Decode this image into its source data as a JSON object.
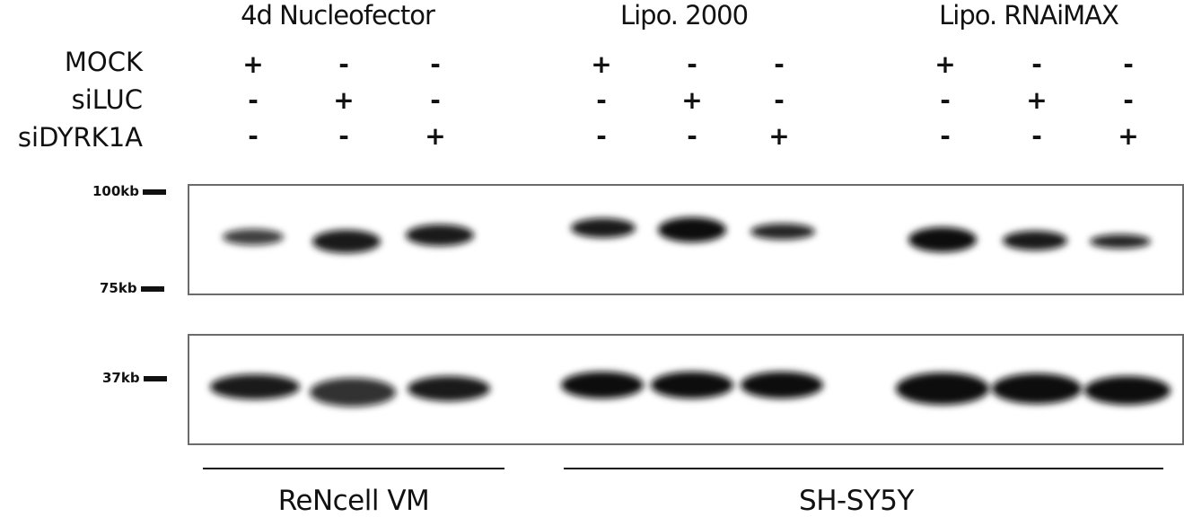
{
  "group_titles": [
    "4d Nucleofector",
    "Lipo. 2000",
    "Lipo. RNAiMAX"
  ],
  "row_labels": [
    "MOCK",
    "siLUC",
    "siDYRK1A"
  ],
  "conditions": [
    [
      "+",
      "-",
      "-"
    ],
    [
      "-",
      "+",
      "-"
    ],
    [
      "-",
      "-",
      "+"
    ]
  ],
  "markers": {
    "top_panel": [
      "100kb",
      "75kb"
    ],
    "bottom_panel": [
      "37kb"
    ]
  },
  "cell_lines": [
    "ReNcell VM",
    "SH-SY5Y"
  ]
}
